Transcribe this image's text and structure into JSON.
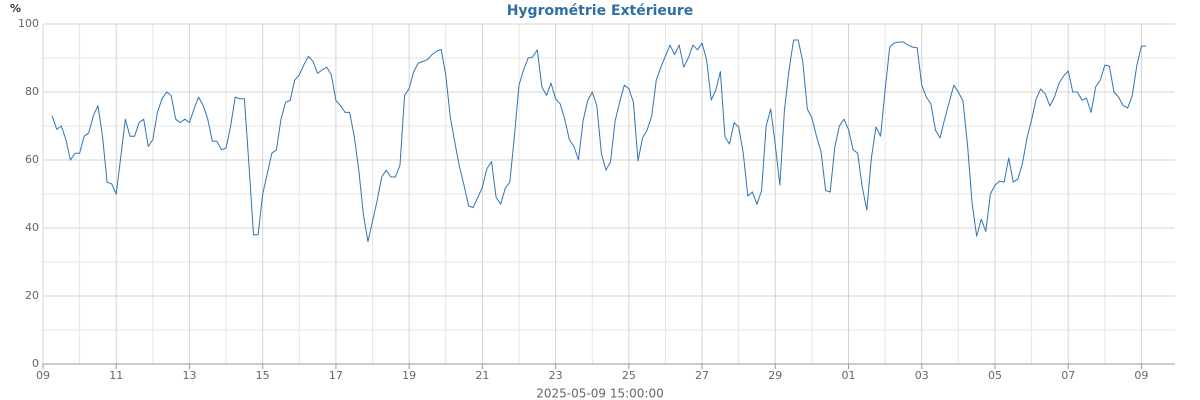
{
  "chart_data": {
    "type": "line",
    "title": "Hygrométrie Extérieure",
    "y_label": "%",
    "x_label": "2025-05-09 15:00:00",
    "x": [
      6,
      9,
      12,
      15,
      18,
      21,
      24,
      27,
      30,
      33,
      36,
      39,
      42,
      45,
      48,
      51,
      54,
      57,
      60,
      63,
      66,
      69,
      72,
      75,
      78,
      81,
      84,
      87,
      90,
      93,
      96,
      99,
      102,
      105,
      108,
      111,
      114,
      117,
      120,
      123,
      126,
      129,
      132,
      135,
      138,
      141,
      144,
      147,
      150,
      153,
      156,
      159,
      162,
      165,
      168,
      171,
      174,
      177,
      180,
      183,
      186,
      189,
      192,
      195,
      198,
      201,
      204,
      207,
      210,
      213,
      216,
      219,
      222,
      225,
      228,
      231,
      234,
      237,
      240,
      243,
      246,
      249,
      252,
      255,
      258,
      261,
      264,
      267,
      270,
      273,
      276,
      279,
      282,
      285,
      288,
      291,
      294,
      297,
      300,
      303,
      306,
      309,
      312,
      315,
      318,
      321,
      324,
      327,
      330,
      333,
      336,
      339,
      342,
      345,
      348,
      351,
      354,
      357,
      360,
      363,
      366,
      369,
      372,
      375,
      378,
      381,
      384,
      387,
      390,
      393,
      396,
      399,
      402,
      405,
      408,
      411,
      414,
      417,
      420,
      423,
      426,
      429,
      432,
      435,
      438,
      441,
      444,
      447,
      450,
      453,
      456,
      459,
      462,
      465,
      468,
      471,
      474,
      477,
      480,
      483,
      486,
      489,
      492,
      495,
      498,
      501,
      504,
      507,
      510,
      513,
      516,
      519,
      522,
      525,
      528,
      531,
      534,
      537,
      540,
      543,
      546,
      549,
      552,
      555,
      558,
      561,
      564,
      567,
      570,
      573,
      576,
      579,
      582,
      585,
      588,
      591,
      594,
      597,
      600,
      603,
      606,
      609,
      612,
      615,
      618,
      621,
      624,
      627,
      630,
      633,
      636,
      639,
      642,
      645,
      648,
      651,
      654,
      657,
      660,
      663,
      666,
      669,
      672,
      675,
      678,
      681,
      684,
      687,
      690,
      693,
      696,
      699,
      702,
      705,
      708,
      711,
      714,
      717,
      720,
      723
    ],
    "series": [
      {
        "name": "Hygrométrie",
        "color": "#2f75b5",
        "values": [
          73,
          69,
          70,
          66,
          60,
          62,
          62,
          67,
          68,
          73,
          76,
          67,
          53.5,
          53,
          50,
          61,
          72,
          67,
          67,
          71,
          72,
          64,
          66,
          74,
          78,
          80,
          79,
          72,
          71,
          72,
          71,
          75,
          78.5,
          76,
          72,
          65.5,
          65.5,
          63,
          63.5,
          70,
          78.5,
          78,
          78,
          58.5,
          38,
          38,
          50,
          56,
          62,
          63,
          72,
          77,
          77.5,
          83.5,
          85,
          88,
          90.5,
          89,
          85.5,
          86.5,
          87.3,
          85,
          77.5,
          76,
          74,
          74,
          67,
          57,
          44,
          36,
          42,
          48,
          55,
          57,
          55,
          55,
          58.5,
          79,
          81,
          86,
          88.5,
          89,
          89.5,
          91,
          92,
          92.5,
          85,
          72.5,
          65,
          58,
          52.5,
          46.5,
          46,
          49,
          52,
          57.5,
          59.5,
          49,
          47,
          51.7,
          53.5,
          67,
          82,
          86.5,
          90,
          90.3,
          92.4,
          81.5,
          79,
          82.6,
          78,
          76.5,
          72,
          66,
          64,
          60,
          71.5,
          77.4,
          80,
          76,
          62,
          57,
          59.5,
          71.5,
          77,
          82,
          81,
          77,
          59.7,
          66.5,
          68.8,
          73,
          83.5,
          87.3,
          90.6,
          93.8,
          91,
          93.8,
          87.3,
          90,
          93.8,
          92.4,
          94.4,
          89.4,
          77.6,
          80.6,
          86,
          66.8,
          64.7,
          71,
          69.7,
          62,
          49.4,
          50.6,
          47,
          51,
          70,
          75,
          64.4,
          52.6,
          74.7,
          86.5,
          95.3,
          95.3,
          89,
          75,
          72.4,
          67,
          62.4,
          51,
          50.6,
          63.8,
          70,
          72,
          69,
          63,
          62,
          52,
          45.3,
          60.6,
          69.7,
          67,
          80.6,
          93.2,
          94.4,
          94.7,
          94.7,
          93.8,
          93.2,
          93,
          82,
          78.5,
          76.5,
          68.8,
          66.5,
          72,
          77,
          82,
          80,
          77.4,
          64.4,
          47.3,
          37.6,
          42.6,
          39,
          50,
          52.6,
          53.8,
          53.5,
          60.6,
          53.5,
          54.4,
          59,
          66.5,
          71.8,
          78,
          80.9,
          79.4,
          75.9,
          78.5,
          82.6,
          84.7,
          86.2,
          80,
          80,
          77.6,
          78.2,
          74,
          81.5,
          83.5,
          87.9,
          87.6,
          80,
          78.5,
          76,
          75.3,
          79,
          87.9,
          93.5,
          93.5
        ]
      }
    ],
    "xlim": [
      0,
      742
    ],
    "xticks": [
      {
        "value": 0,
        "label": "09"
      },
      {
        "value": 48,
        "label": "11"
      },
      {
        "value": 96,
        "label": "13"
      },
      {
        "value": 144,
        "label": "15"
      },
      {
        "value": 192,
        "label": "17"
      },
      {
        "value": 240,
        "label": "19"
      },
      {
        "value": 288,
        "label": "21"
      },
      {
        "value": 336,
        "label": "23"
      },
      {
        "value": 384,
        "label": "25"
      },
      {
        "value": 432,
        "label": "27"
      },
      {
        "value": 480,
        "label": "29"
      },
      {
        "value": 528,
        "label": "01"
      },
      {
        "value": 576,
        "label": "03"
      },
      {
        "value": 624,
        "label": "05"
      },
      {
        "value": 672,
        "label": "07"
      },
      {
        "value": 720,
        "label": "09"
      }
    ],
    "xminor": [
      24,
      72,
      120,
      168,
      216,
      264,
      312,
      360,
      408,
      456,
      504,
      552,
      600,
      648,
      696
    ],
    "ylim": [
      0,
      100
    ],
    "yticks": [
      0,
      20,
      40,
      60,
      80,
      100
    ],
    "yminor": [
      10,
      30,
      50,
      70,
      90
    ],
    "grid": true
  }
}
